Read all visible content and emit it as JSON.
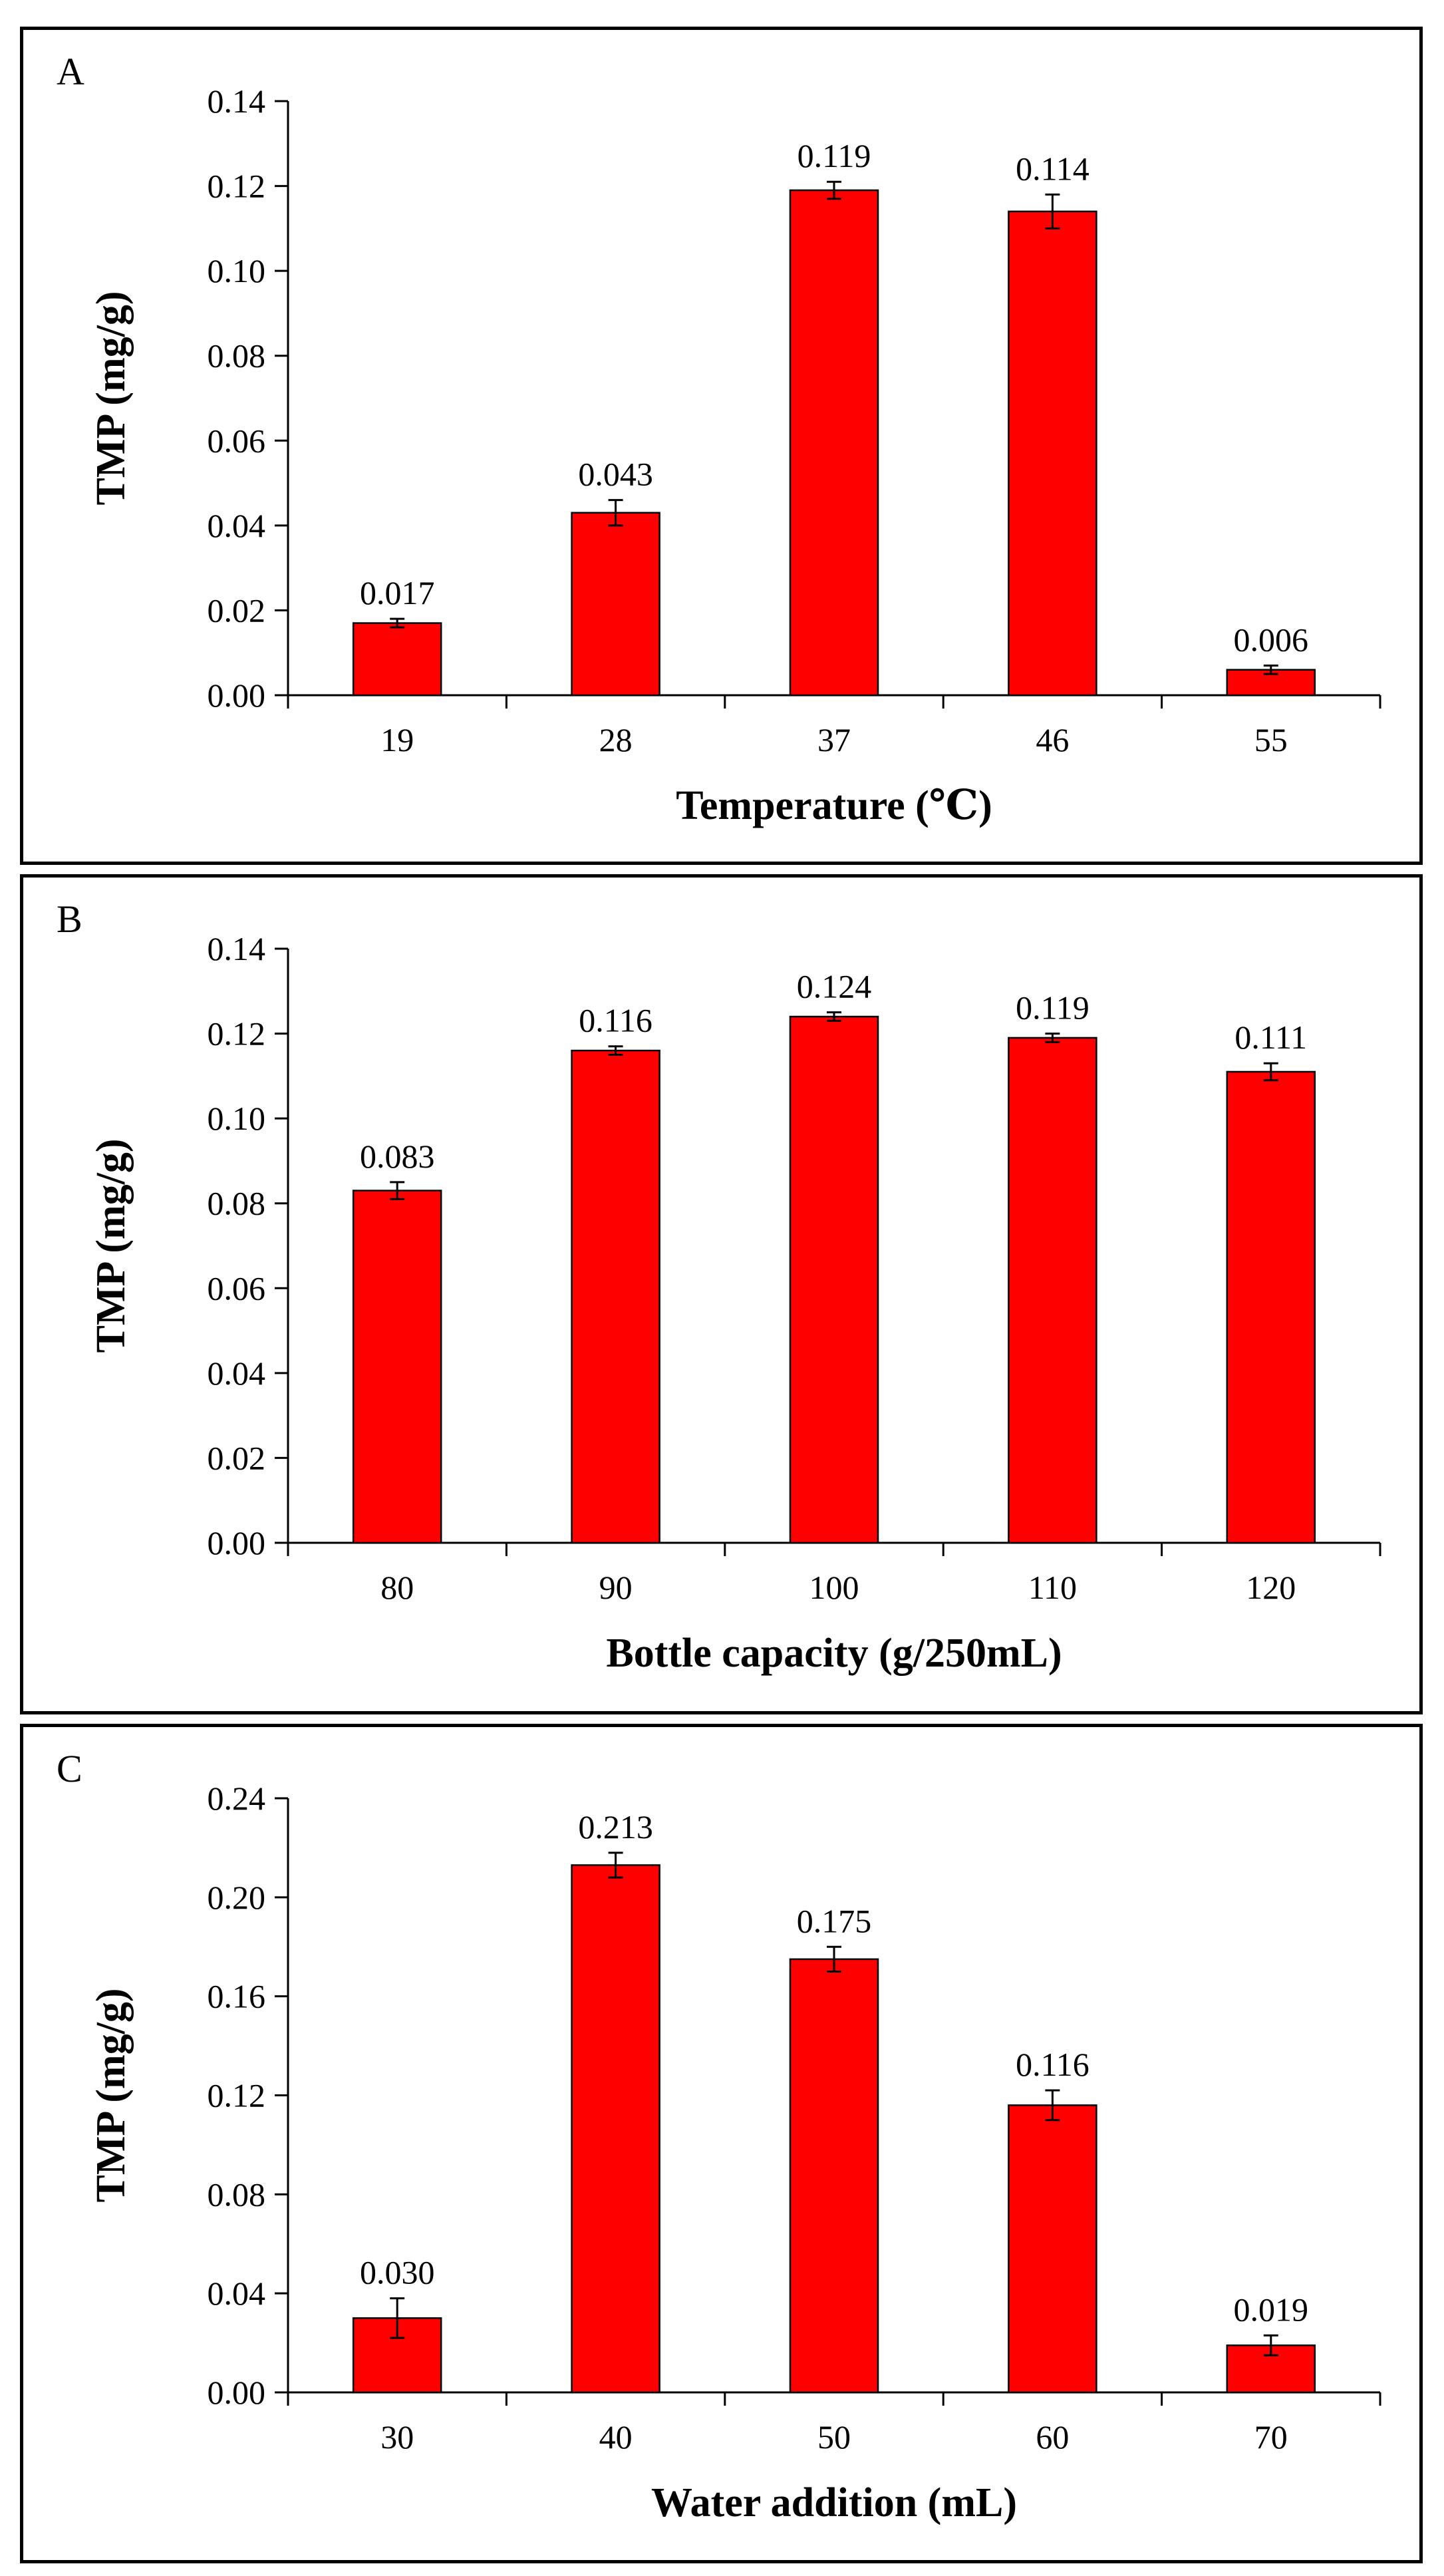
{
  "chart_data": [
    {
      "type": "bar",
      "panel_label": "A",
      "title": "",
      "xlabel": "Temperature (℃)",
      "ylabel": "TMP (mg/g)",
      "categories": [
        "19",
        "28",
        "37",
        "46",
        "55"
      ],
      "values": [
        0.017,
        0.043,
        0.119,
        0.114,
        0.006
      ],
      "value_labels": [
        "0.017",
        "0.043",
        "0.119",
        "0.114",
        "0.006"
      ],
      "errors": [
        0.001,
        0.003,
        0.002,
        0.004,
        0.001
      ],
      "ylim": [
        0,
        0.14
      ],
      "yticks": [
        0,
        0.02,
        0.04,
        0.06,
        0.08,
        0.1,
        0.12,
        0.14
      ],
      "ytick_labels": [
        "0.00",
        "0.02",
        "0.04",
        "0.06",
        "0.08",
        "0.10",
        "0.12",
        "0.14"
      ],
      "bar_color": "#ff0000",
      "grid": false
    },
    {
      "type": "bar",
      "panel_label": "B",
      "title": "",
      "xlabel": "Bottle capacity (g/250mL)",
      "ylabel": "TMP (mg/g)",
      "categories": [
        "80",
        "90",
        "100",
        "110",
        "120"
      ],
      "values": [
        0.083,
        0.116,
        0.124,
        0.119,
        0.111
      ],
      "value_labels": [
        "0.083",
        "0.116",
        "0.124",
        "0.119",
        "0.111"
      ],
      "errors": [
        0.002,
        0.001,
        0.001,
        0.001,
        0.002
      ],
      "ylim": [
        0,
        0.14
      ],
      "yticks": [
        0,
        0.02,
        0.04,
        0.06,
        0.08,
        0.1,
        0.12,
        0.14
      ],
      "ytick_labels": [
        "0.00",
        "0.02",
        "0.04",
        "0.06",
        "0.08",
        "0.10",
        "0.12",
        "0.14"
      ],
      "bar_color": "#ff0000",
      "grid": false
    },
    {
      "type": "bar",
      "panel_label": "C",
      "title": "",
      "xlabel": "Water addition (mL)",
      "ylabel": "TMP (mg/g)",
      "categories": [
        "30",
        "40",
        "50",
        "60",
        "70"
      ],
      "values": [
        0.03,
        0.213,
        0.175,
        0.116,
        0.019
      ],
      "value_labels": [
        "0.030",
        "0.213",
        "0.175",
        "0.116",
        "0.019"
      ],
      "errors": [
        0.008,
        0.005,
        0.005,
        0.006,
        0.004
      ],
      "ylim": [
        0,
        0.24
      ],
      "yticks": [
        0,
        0.04,
        0.08,
        0.12,
        0.16,
        0.2,
        0.24
      ],
      "ytick_labels": [
        "0.00",
        "0.04",
        "0.08",
        "0.12",
        "0.16",
        "0.20",
        "0.24"
      ],
      "bar_color": "#ff0000",
      "grid": false
    }
  ]
}
